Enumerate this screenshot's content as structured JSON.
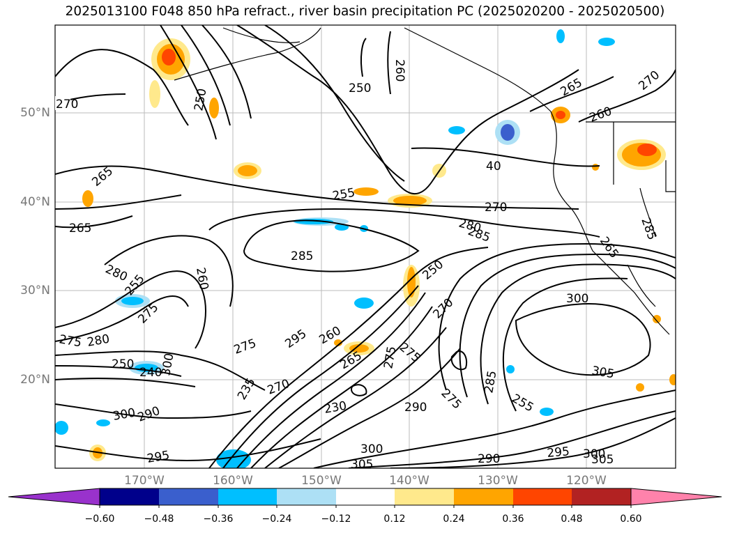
{
  "title": "2025013100 F048 850 hPa refract., river basin precipitation PC (2025020200 - 2025020500)",
  "lat_labels": [
    "50°N",
    "40°N",
    "30°N",
    "20°N"
  ],
  "lon_labels": [
    "170°W",
    "160°W",
    "150°W",
    "140°W",
    "130°W",
    "120°W"
  ],
  "contour_labels": [
    "270",
    "250",
    "250",
    "260",
    "265",
    "270",
    "260",
    "265",
    "40",
    "255",
    "270",
    "280",
    "285",
    "285",
    "265",
    "280",
    "255",
    "260",
    "275",
    "250",
    "270",
    "265",
    "285",
    "275",
    "280",
    "275",
    "295",
    "260",
    "265",
    "275",
    "275",
    "250",
    "240",
    "300",
    "285",
    "255",
    "270",
    "235",
    "230",
    "290",
    "275",
    "300",
    "305",
    "300",
    "290",
    "295",
    "305",
    "300"
  ],
  "colorbar": {
    "ticks": [
      "−0.60",
      "−0.48",
      "−0.36",
      "−0.24",
      "−0.12",
      "0.12",
      "0.24",
      "0.36",
      "0.48",
      "0.60"
    ],
    "colors": [
      "#9932CC",
      "#00008B",
      "#3A5FCD",
      "#00BFFF",
      "#ADE0F5",
      "#FFFFFF",
      "#FFE98C",
      "#FFA500",
      "#FF4500",
      "#B22222",
      "#FF82AB"
    ]
  }
}
